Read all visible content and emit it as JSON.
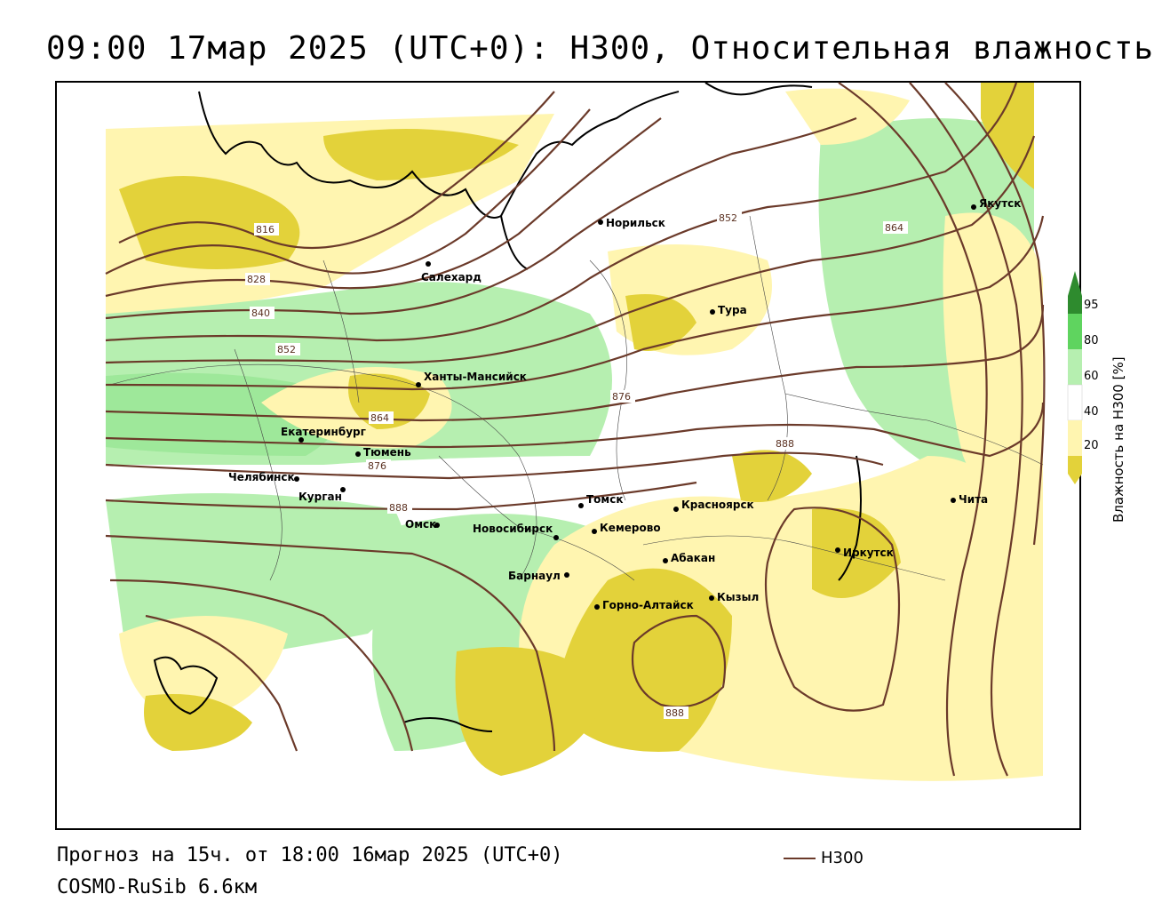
{
  "title": "09:00 17мар 2025 (UTC+0): H300, Относительная влажность",
  "footer": {
    "forecast": "Прогноз на 15ч. от 18:00 16мар 2025 (UTC+0)",
    "model": "COSMO-RuSib 6.6км"
  },
  "legend": {
    "line_label": "H300",
    "line_color": "#6b3a2a"
  },
  "colorbar": {
    "title": "Влажность на Н300 [%]",
    "ticks": [
      "95",
      "80",
      "60",
      "40",
      "20"
    ],
    "colors": [
      "#2e8b2e",
      "#5fd45f",
      "#b6efb0",
      "#ffffff",
      "#fff5b0",
      "#e3d23a"
    ]
  },
  "cities": [
    {
      "name": "Якутск"
    },
    {
      "name": "Норильск"
    },
    {
      "name": "Салехард"
    },
    {
      "name": "Тура"
    },
    {
      "name": "Ханты-Мансийск"
    },
    {
      "name": "Екатеринбург"
    },
    {
      "name": "Тюмень"
    },
    {
      "name": "Челябинск"
    },
    {
      "name": "Курган"
    },
    {
      "name": "Омск"
    },
    {
      "name": "Новосибирск"
    },
    {
      "name": "Томск"
    },
    {
      "name": "Кемерово"
    },
    {
      "name": "Красноярск"
    },
    {
      "name": "Абакан"
    },
    {
      "name": "Барнаул"
    },
    {
      "name": "Горно-Алтайск"
    },
    {
      "name": "Кызыл"
    },
    {
      "name": "Иркутск"
    },
    {
      "name": "Чита"
    }
  ],
  "contour_labels": [
    "816",
    "828",
    "840",
    "852",
    "864",
    "876",
    "888",
    "852",
    "864",
    "876",
    "888",
    "888"
  ]
}
